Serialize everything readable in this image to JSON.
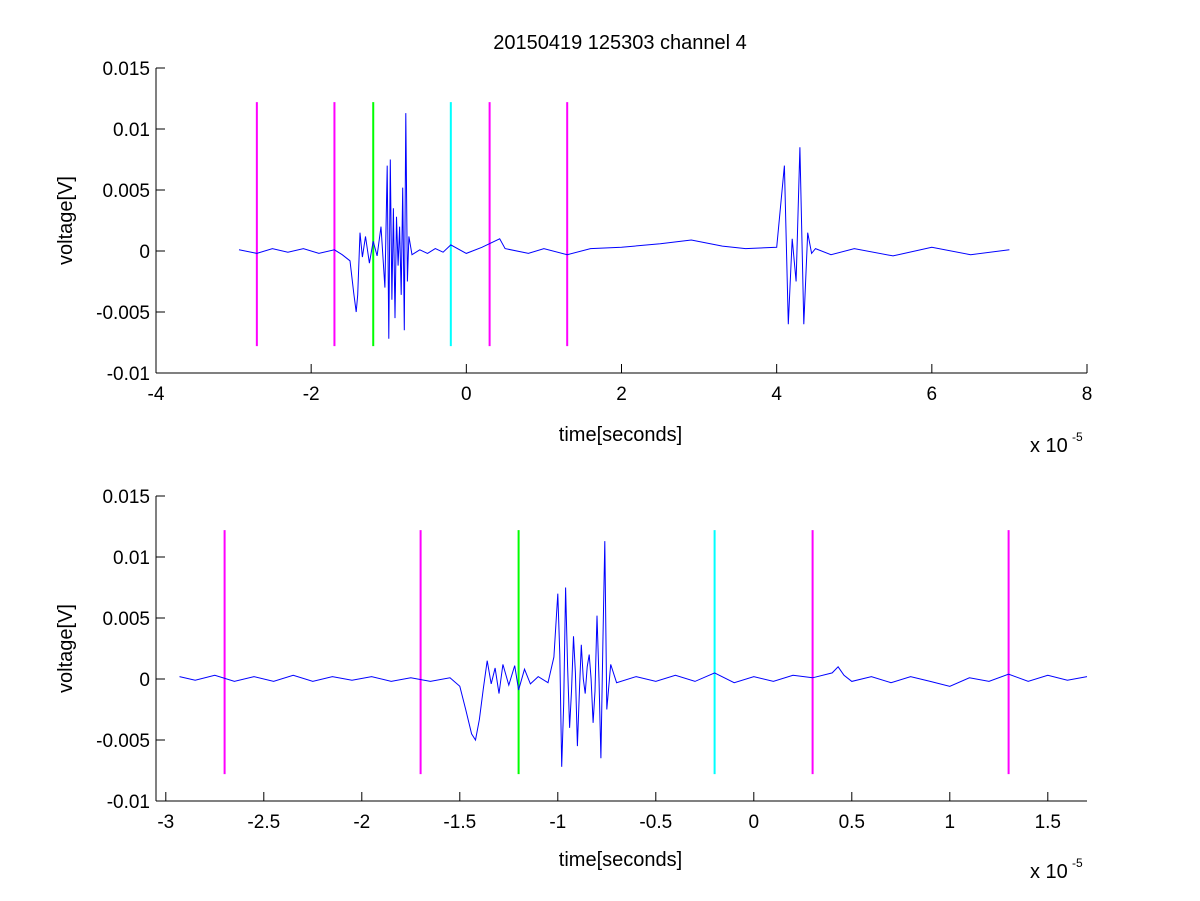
{
  "figure": {
    "title": "20150419 125303 channel 4"
  },
  "chart_data": [
    {
      "type": "line",
      "xlabel": "time[seconds]",
      "ylabel": "voltage[V]",
      "x_multiplier": "x 10",
      "x_exponent": "-5",
      "xlim": [
        -4,
        8
      ],
      "ylim": [
        -0.01,
        0.015
      ],
      "xticks": [
        -4,
        -2,
        0,
        2,
        4,
        6,
        8
      ],
      "xtick_labels": [
        "-4",
        "-2",
        "0",
        "2",
        "4",
        "6",
        "8"
      ],
      "yticks": [
        -0.01,
        -0.005,
        0,
        0.005,
        0.01,
        0.015
      ],
      "ytick_labels": [
        "-0.01",
        "-0.005",
        "0",
        "0.005",
        "0.01",
        "0.015"
      ],
      "grid": false,
      "markers": [
        {
          "x": -2.7,
          "color": "#ff00ff"
        },
        {
          "x": -1.7,
          "color": "#ff00ff"
        },
        {
          "x": -1.2,
          "color": "#00ff00"
        },
        {
          "x": -0.2,
          "color": "#00ffff"
        },
        {
          "x": 0.3,
          "color": "#ff00ff"
        },
        {
          "x": 1.3,
          "color": "#ff00ff"
        }
      ],
      "marker_range": [
        -0.0078,
        0.0122
      ],
      "series": [
        {
          "color": "#0000ff",
          "x": [
            -2.93,
            -2.7,
            -2.5,
            -2.3,
            -2.1,
            -1.9,
            -1.7,
            -1.6,
            -1.5,
            -1.45,
            -1.42,
            -1.4,
            -1.37,
            -1.34,
            -1.3,
            -1.25,
            -1.2,
            -1.15,
            -1.1,
            -1.05,
            -1.02,
            -1.0,
            -0.98,
            -0.96,
            -0.94,
            -0.92,
            -0.9,
            -0.88,
            -0.86,
            -0.84,
            -0.82,
            -0.8,
            -0.78,
            -0.76,
            -0.74,
            -0.7,
            -0.6,
            -0.5,
            -0.4,
            -0.3,
            -0.2,
            0.0,
            0.2,
            0.43,
            0.5,
            0.8,
            1.0,
            1.3,
            1.6,
            2.0,
            2.5,
            2.9,
            3.3,
            3.6,
            4.0,
            4.1,
            4.15,
            4.2,
            4.25,
            4.3,
            4.35,
            4.4,
            4.45,
            4.5,
            4.7,
            5.0,
            5.5,
            6.0,
            6.5,
            7.0
          ],
          "y": [
            0.0001,
            -0.0002,
            0.0002,
            -0.0001,
            0.0002,
            -0.0002,
            0.0001,
            -0.0003,
            -0.0008,
            -0.0035,
            -0.005,
            -0.0036,
            0.0015,
            -0.0005,
            0.0012,
            -0.001,
            0.0008,
            -0.0004,
            0.002,
            -0.003,
            0.007,
            -0.0072,
            0.0075,
            -0.004,
            0.0035,
            -0.0055,
            0.0028,
            -0.0012,
            0.002,
            -0.0036,
            0.0052,
            -0.0065,
            0.0113,
            -0.0025,
            0.0012,
            -0.0003,
            0.0001,
            -0.0002,
            0.0002,
            -0.0001,
            0.0005,
            -0.0002,
            0.0003,
            0.001,
            0.0002,
            -0.0002,
            0.0002,
            -0.0003,
            0.0002,
            0.0003,
            0.0006,
            0.0009,
            0.0004,
            0.0002,
            0.0003,
            0.007,
            -0.006,
            0.001,
            -0.0025,
            0.0085,
            -0.006,
            0.0015,
            -0.0002,
            0.0002,
            -0.0003,
            0.0002,
            -0.0004,
            0.0003,
            -0.0003,
            0.0001
          ]
        }
      ]
    },
    {
      "type": "line",
      "xlabel": "time[seconds]",
      "ylabel": "voltage[V]",
      "x_multiplier": "x 10",
      "x_exponent": "-5",
      "xlim": [
        -3.05,
        1.7
      ],
      "ylim": [
        -0.01,
        0.015
      ],
      "xticks": [
        -3,
        -2.5,
        -2,
        -1.5,
        -1,
        -0.5,
        0,
        0.5,
        1,
        1.5
      ],
      "xtick_labels": [
        "-3",
        "-2.5",
        "-2",
        "-1.5",
        "-1",
        "-0.5",
        "0",
        "0.5",
        "1",
        "1.5"
      ],
      "yticks": [
        -0.01,
        -0.005,
        0,
        0.005,
        0.01,
        0.015
      ],
      "ytick_labels": [
        "-0.01",
        "-0.005",
        "0",
        "0.005",
        "0.01",
        "0.015"
      ],
      "grid": false,
      "markers": [
        {
          "x": -2.7,
          "color": "#ff00ff"
        },
        {
          "x": -1.7,
          "color": "#ff00ff"
        },
        {
          "x": -1.2,
          "color": "#00ff00"
        },
        {
          "x": -0.2,
          "color": "#00ffff"
        },
        {
          "x": 0.3,
          "color": "#ff00ff"
        },
        {
          "x": 1.3,
          "color": "#ff00ff"
        }
      ],
      "marker_range": [
        -0.0078,
        0.0122
      ],
      "series": [
        {
          "color": "#0000ff",
          "x": [
            -2.93,
            -2.85,
            -2.75,
            -2.65,
            -2.55,
            -2.45,
            -2.35,
            -2.25,
            -2.15,
            -2.05,
            -1.95,
            -1.85,
            -1.75,
            -1.65,
            -1.55,
            -1.5,
            -1.47,
            -1.44,
            -1.42,
            -1.4,
            -1.38,
            -1.36,
            -1.34,
            -1.32,
            -1.3,
            -1.28,
            -1.25,
            -1.22,
            -1.2,
            -1.17,
            -1.14,
            -1.1,
            -1.05,
            -1.02,
            -1.0,
            -0.99,
            -0.98,
            -0.97,
            -0.96,
            -0.95,
            -0.94,
            -0.93,
            -0.92,
            -0.91,
            -0.9,
            -0.89,
            -0.88,
            -0.87,
            -0.86,
            -0.85,
            -0.84,
            -0.83,
            -0.82,
            -0.81,
            -0.8,
            -0.79,
            -0.78,
            -0.77,
            -0.76,
            -0.75,
            -0.73,
            -0.7,
            -0.6,
            -0.5,
            -0.4,
            -0.3,
            -0.2,
            -0.1,
            0.0,
            0.1,
            0.2,
            0.3,
            0.4,
            0.43,
            0.46,
            0.5,
            0.6,
            0.7,
            0.8,
            0.9,
            1.0,
            1.1,
            1.2,
            1.3,
            1.4,
            1.5,
            1.6,
            1.7
          ],
          "y": [
            0.0002,
            -0.0001,
            0.0003,
            -0.0002,
            0.0002,
            -0.0002,
            0.0003,
            -0.0002,
            0.0002,
            -0.0001,
            0.0002,
            -0.0002,
            0.0001,
            -0.0002,
            0.0001,
            -0.0006,
            -0.0025,
            -0.0045,
            -0.005,
            -0.0033,
            -0.0008,
            0.0015,
            -0.0004,
            0.0009,
            -0.0012,
            0.0012,
            -0.0005,
            0.0011,
            -0.0009,
            0.0008,
            -0.0004,
            0.0002,
            -0.0003,
            0.0018,
            0.007,
            0.002,
            -0.0072,
            -0.002,
            0.0075,
            0.001,
            -0.004,
            -0.001,
            0.0035,
            0.0005,
            -0.0055,
            -0.001,
            0.0028,
            0.0,
            -0.0012,
            0.001,
            0.002,
            0.0,
            -0.0036,
            -0.001,
            0.0052,
            0.0,
            -0.0065,
            0.003,
            0.0113,
            -0.0025,
            0.0012,
            -0.0003,
            0.0002,
            -0.0002,
            0.0003,
            -0.0002,
            0.0005,
            -0.0003,
            0.0002,
            -0.0002,
            0.0003,
            0.0001,
            0.0005,
            0.001,
            0.0003,
            -0.0002,
            0.0002,
            -0.0003,
            0.0002,
            -0.0002,
            -0.0006,
            0.0001,
            -0.0002,
            0.0004,
            -0.0002,
            0.0003,
            -0.0001,
            0.0002
          ]
        }
      ]
    }
  ]
}
